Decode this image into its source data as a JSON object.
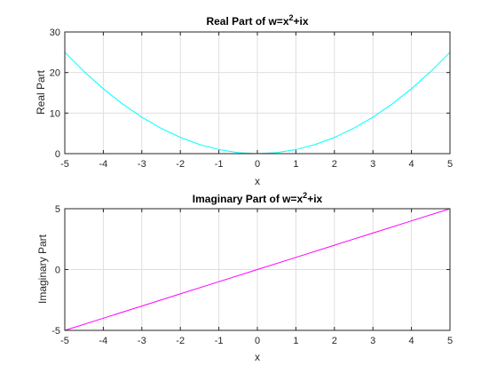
{
  "chart_data": [
    {
      "type": "line",
      "title_base": "Real Part of w=x",
      "title_sup": "2",
      "title_tail": "+ix",
      "xlabel": "x",
      "ylabel": "Real Part",
      "xlim": [
        -5,
        5
      ],
      "ylim": [
        0,
        30
      ],
      "xticks": [
        -5,
        -4,
        -3,
        -2,
        -1,
        0,
        1,
        2,
        3,
        4,
        5
      ],
      "yticks": [
        0,
        10,
        20,
        30
      ],
      "grid": true,
      "series": [
        {
          "color": "#00ffff",
          "x": [
            -5,
            -4.5,
            -4,
            -3.5,
            -3,
            -2.5,
            -2,
            -1.5,
            -1,
            -0.5,
            0,
            0.5,
            1,
            1.5,
            2,
            2.5,
            3,
            3.5,
            4,
            4.5,
            5
          ],
          "y": [
            25,
            20.25,
            16,
            12.25,
            9,
            6.25,
            4,
            2.25,
            1,
            0.25,
            0,
            0.25,
            1,
            2.25,
            4,
            6.25,
            9,
            12.25,
            16,
            20.25,
            25
          ]
        }
      ]
    },
    {
      "type": "line",
      "title_base": "Imaginary Part of w=x",
      "title_sup": "2",
      "title_tail": "+ix",
      "xlabel": "x",
      "ylabel": "Imaginary Part",
      "xlim": [
        -5,
        5
      ],
      "ylim": [
        -5,
        5
      ],
      "xticks": [
        -5,
        -4,
        -3,
        -2,
        -1,
        0,
        1,
        2,
        3,
        4,
        5
      ],
      "yticks": [
        -5,
        0,
        5
      ],
      "grid": true,
      "series": [
        {
          "color": "#ff00ff",
          "x": [
            -5,
            -4,
            -3,
            -2,
            -1,
            0,
            1,
            2,
            3,
            4,
            5
          ],
          "y": [
            -5,
            -4,
            -3,
            -2,
            -1,
            0,
            1,
            2,
            3,
            4,
            5
          ]
        }
      ]
    }
  ]
}
